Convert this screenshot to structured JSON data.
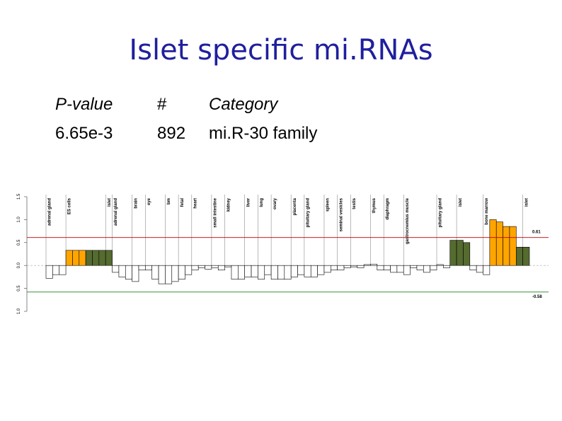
{
  "title": "Islet specific mi.RNAs",
  "table": {
    "header": [
      "P-value",
      "#",
      "Category"
    ],
    "rows": [
      [
        "6.65e-3",
        "892",
        "mi.R-30 family"
      ]
    ]
  },
  "chart_data": {
    "type": "bar",
    "values": [
      -0.28,
      -0.2,
      -0.2,
      0.33,
      0.33,
      0.33,
      0.33,
      0.33,
      0.33,
      0.33,
      -0.15,
      -0.25,
      -0.3,
      -0.35,
      -0.1,
      -0.1,
      -0.3,
      -0.4,
      -0.4,
      -0.35,
      -0.3,
      -0.2,
      -0.1,
      -0.05,
      -0.08,
      -0.05,
      -0.1,
      -0.03,
      -0.3,
      -0.3,
      -0.25,
      -0.25,
      -0.3,
      -0.2,
      -0.3,
      -0.3,
      -0.3,
      -0.25,
      -0.2,
      -0.25,
      -0.25,
      -0.2,
      -0.15,
      -0.1,
      -0.1,
      -0.05,
      -0.03,
      -0.05,
      0.02,
      0.03,
      -0.1,
      -0.1,
      -0.15,
      -0.15,
      -0.2,
      -0.05,
      -0.1,
      -0.15,
      -0.1,
      0.02,
      -0.05,
      0.55,
      0.55,
      0.5,
      -0.1,
      -0.15,
      -0.2,
      1.0,
      0.95,
      0.85,
      0.85,
      0.4,
      0.4
    ],
    "colors": [
      "#fff",
      "#fff",
      "#fff",
      "#ffa500",
      "#ffa500",
      "#ffa500",
      "#556b2f",
      "#556b2f",
      "#556b2f",
      "#556b2f",
      "#fff",
      "#fff",
      "#fff",
      "#fff",
      "#fff",
      "#fff",
      "#fff",
      "#fff",
      "#fff",
      "#fff",
      "#fff",
      "#fff",
      "#fff",
      "#fff",
      "#fff",
      "#fff",
      "#fff",
      "#fff",
      "#fff",
      "#fff",
      "#fff",
      "#fff",
      "#fff",
      "#fff",
      "#fff",
      "#fff",
      "#fff",
      "#fff",
      "#fff",
      "#fff",
      "#fff",
      "#fff",
      "#fff",
      "#fff",
      "#fff",
      "#fff",
      "#fff",
      "#fff",
      "#fff",
      "#fff",
      "#fff",
      "#fff",
      "#fff",
      "#fff",
      "#fff",
      "#fff",
      "#fff",
      "#fff",
      "#fff",
      "#fff",
      "#fff",
      "#556b2f",
      "#556b2f",
      "#556b2f",
      "#fff",
      "#fff",
      "#fff",
      "#ffa500",
      "#ffa500",
      "#ffa500",
      "#ffa500",
      "#556b2f",
      "#556b2f"
    ],
    "groups": [
      {
        "name": "adrenal gland",
        "index": 0
      },
      {
        "name": "ES cells",
        "index": 3
      },
      {
        "name": "islet",
        "index": 9
      },
      {
        "name": "adrenal gland",
        "index": 10
      },
      {
        "name": "brain",
        "index": 13
      },
      {
        "name": "eye",
        "index": 15
      },
      {
        "name": "bm",
        "index": 18
      },
      {
        "name": "fetal",
        "index": 20
      },
      {
        "name": "heart",
        "index": 22
      },
      {
        "name": "small intestine",
        "index": 25
      },
      {
        "name": "kidney",
        "index": 27
      },
      {
        "name": "liver",
        "index": 30
      },
      {
        "name": "lung",
        "index": 32
      },
      {
        "name": "ovary",
        "index": 34
      },
      {
        "name": "placenta",
        "index": 37
      },
      {
        "name": "pituitary gland",
        "index": 39
      },
      {
        "name": "spleen",
        "index": 42
      },
      {
        "name": "seminal vesicles",
        "index": 44
      },
      {
        "name": "testis",
        "index": 46
      },
      {
        "name": "thymus",
        "index": 49
      },
      {
        "name": "diaphragm",
        "index": 51
      },
      {
        "name": "gastrocnemius muscle",
        "index": 54
      },
      {
        "name": "pituitary gland",
        "index": 59
      },
      {
        "name": "islet",
        "index": 62
      },
      {
        "name": "bone marrow",
        "index": 66
      },
      {
        "name": "islet",
        "index": 72
      }
    ],
    "thresholds": [
      {
        "value": 0.61,
        "label": "0.61",
        "color": "#c00000"
      },
      {
        "value": -0.58,
        "label": "-0.58",
        "color": "#007000"
      }
    ],
    "ylim": [
      -1.0,
      1.5
    ],
    "yticks": [
      {
        "value": -1.0,
        "label": "1.0"
      },
      {
        "value": -0.5,
        "label": "0.5"
      },
      {
        "value": 0.0,
        "label": "0.0"
      },
      {
        "value": 0.5,
        "label": "0.5"
      },
      {
        "value": 1.0,
        "label": "1.0"
      },
      1.5
    ]
  }
}
